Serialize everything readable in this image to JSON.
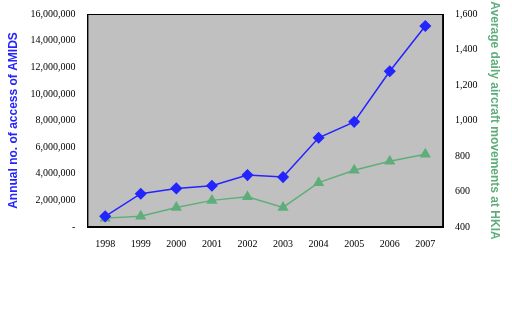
{
  "chart_data": {
    "type": "line",
    "categories": [
      "1998",
      "1999",
      "2000",
      "2001",
      "2002",
      "2003",
      "2004",
      "2005",
      "2006",
      "2007"
    ],
    "series": [
      {
        "values": [
          800000,
          2500000,
          2900000,
          3100000,
          3900000,
          3750000,
          6700000,
          7900000,
          11700000,
          15100000
        ],
        "color": "#2424ff",
        "marker": "diamond",
        "axis": "y"
      },
      {
        "values": [
          450,
          460,
          510,
          550,
          570,
          510,
          650,
          720,
          770,
          810
        ],
        "color": "#5fae7a",
        "marker": "triangle",
        "axis": "y2"
      }
    ],
    "ylabel": "Annual no. of access of AMIDS",
    "y2label": "Average daily aircraft movements at HKIA",
    "ylim": [
      0,
      16000000
    ],
    "yticks": [
      {
        "value": 0,
        "label": "-"
      },
      {
        "value": 2000000,
        "label": "2,000,000"
      },
      {
        "value": 4000000,
        "label": "4,000,000"
      },
      {
        "value": 6000000,
        "label": "6,000,000"
      },
      {
        "value": 8000000,
        "label": "8,000,000"
      },
      {
        "value": 10000000,
        "label": "10,000,000"
      },
      {
        "value": 12000000,
        "label": "12,000,000"
      },
      {
        "value": 14000000,
        "label": "14,000,000"
      },
      {
        "value": 16000000,
        "label": "16,000,000"
      }
    ],
    "y2lim": [
      400,
      1600
    ],
    "y2ticks": [
      400,
      600,
      800,
      {
        "value": 1000,
        "label": "1,000"
      },
      {
        "value": 1200,
        "label": "1,200"
      },
      {
        "value": 1400,
        "label": "1,400"
      },
      {
        "value": 1600,
        "label": "1,600"
      }
    ],
    "grid": false
  }
}
